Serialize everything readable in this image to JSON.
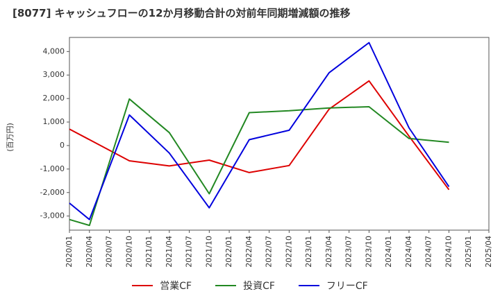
{
  "chart_data": {
    "type": "line",
    "title": "[8077]  キャッシュフローの12か月移動合計の対前年同期増減額の推移",
    "ylabel": "(百万円)",
    "xlabel": "",
    "ylim": [
      -3600,
      4600
    ],
    "yticks": [
      -3000,
      -2000,
      -1000,
      0,
      1000,
      2000,
      3000,
      4000
    ],
    "ytick_labels": [
      "-3,000",
      "-2,000",
      "-1,000",
      "0",
      "1,000",
      "2,000",
      "3,000",
      "4,000"
    ],
    "categories": [
      "2020/01",
      "2020/04",
      "2020/07",
      "2020/10",
      "2021/01",
      "2021/04",
      "2021/07",
      "2021/10",
      "2022/01",
      "2022/04",
      "2022/07",
      "2022/10",
      "2023/01",
      "2023/04",
      "2023/07",
      "2023/10",
      "2024/01",
      "2024/04",
      "2024/07",
      "2024/10",
      "2025/01",
      "2025/04"
    ],
    "grid": true,
    "legend_position": "bottom",
    "series": [
      {
        "name": "営業CF",
        "color": "#dd0000",
        "points": [
          [
            0,
            700
          ],
          [
            3,
            -650
          ],
          [
            5,
            -870
          ],
          [
            7,
            -620
          ],
          [
            9,
            -1150
          ],
          [
            11,
            -850
          ],
          [
            13,
            1550
          ],
          [
            15,
            2750
          ],
          [
            17,
            400
          ],
          [
            19,
            -1880
          ]
        ]
      },
      {
        "name": "投資CF",
        "color": "#228822",
        "points": [
          [
            0,
            -3150
          ],
          [
            1,
            -3400
          ],
          [
            3,
            1980
          ],
          [
            5,
            550
          ],
          [
            7,
            -2050
          ],
          [
            9,
            1400
          ],
          [
            11,
            1480
          ],
          [
            13,
            1600
          ],
          [
            15,
            1650
          ],
          [
            17,
            300
          ],
          [
            19,
            140
          ]
        ]
      },
      {
        "name": "フリーCF",
        "color": "#0000dd",
        "points": [
          [
            0,
            -2450
          ],
          [
            1,
            -3150
          ],
          [
            3,
            1300
          ],
          [
            5,
            -320
          ],
          [
            7,
            -2650
          ],
          [
            9,
            250
          ],
          [
            11,
            650
          ],
          [
            13,
            3100
          ],
          [
            15,
            4380
          ],
          [
            17,
            750
          ],
          [
            19,
            -1750
          ]
        ]
      }
    ]
  }
}
